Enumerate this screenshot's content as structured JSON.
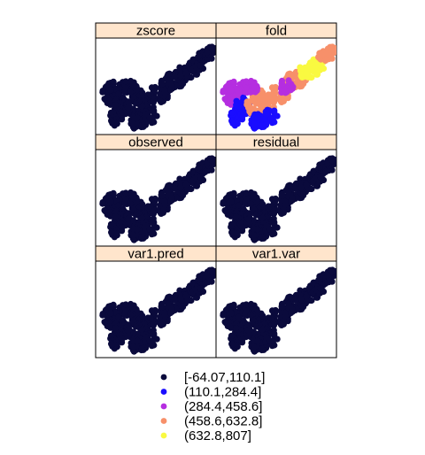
{
  "chart_data": {
    "type": "scatter",
    "description_free": true,
    "panels": [
      {
        "name": "zscore",
        "fold_colored": false
      },
      {
        "name": "fold",
        "fold_colored": true
      },
      {
        "name": "observed",
        "fold_colored": false
      },
      {
        "name": "residual",
        "fold_colored": false
      },
      {
        "name": "var1.pred",
        "fold_colored": false
      },
      {
        "name": "var1.var",
        "fold_colored": false
      }
    ],
    "legend": {
      "placement": "bottom",
      "entries": [
        {
          "label": "[-64.07,110.1]",
          "color": "#0a0a3c"
        },
        {
          "label": "(110.1,284.4]",
          "color": "#1a0dff"
        },
        {
          "label": "(284.4,458.6]",
          "color": "#b52ee0"
        },
        {
          "label": "(458.6,632.8]",
          "color": "#f7906a"
        },
        {
          "label": "(632.8,807]",
          "color": "#f9f941"
        }
      ]
    },
    "strip_color": "#ffe5cc",
    "grid": false
  }
}
